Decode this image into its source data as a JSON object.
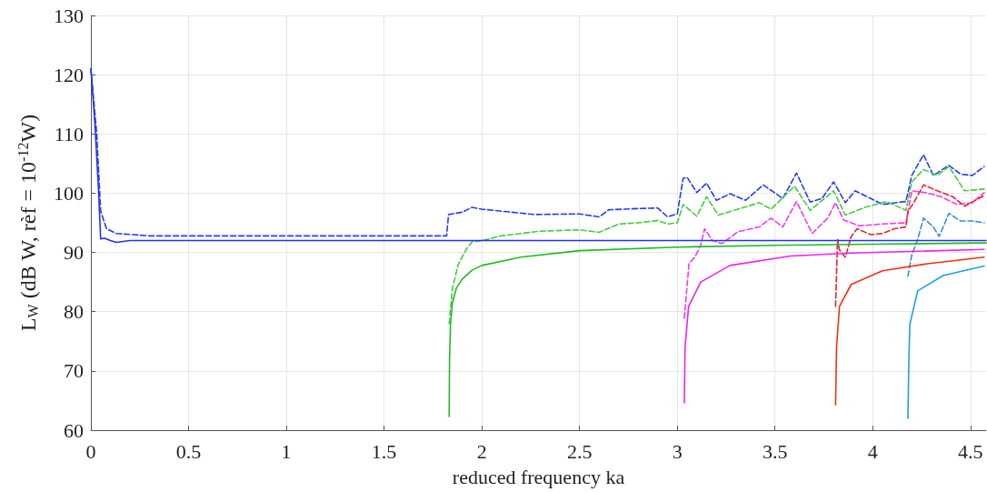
{
  "chart_data": {
    "type": "line",
    "xlabel": "reduced frequency ka",
    "ylabel": "L$_{W}$ (dB W, rèf = 10$^{-12}$W)",
    "xlim": [
      0,
      4.58
    ],
    "xticks": [
      0,
      0.5,
      1,
      1.5,
      2,
      2.5,
      3,
      3.5,
      4,
      4.5
    ],
    "ylim": [
      60,
      130
    ],
    "yticks": [
      60,
      70,
      80,
      90,
      100,
      110,
      120,
      130
    ],
    "grid": true,
    "marker": "none",
    "series": [
      {
        "color": "#2a3cf0",
        "line_style": "dashed",
        "x": [
          0,
          0.03,
          0.05,
          0.08,
          0.13,
          0.3,
          1,
          1.82,
          1.83,
          1.9,
          1.95,
          2.0,
          2.27,
          2.5,
          2.6,
          2.65,
          2.8,
          2.9,
          2.95,
          3.0,
          3.03,
          3.05,
          3.1,
          3.15,
          3.2,
          3.27,
          3.35,
          3.44,
          3.54,
          3.61,
          3.68,
          3.74,
          3.8,
          3.86,
          3.91,
          3.99,
          4.05,
          4.17,
          4.2,
          4.26,
          4.31,
          4.39,
          4.45,
          4.51,
          4.57
        ],
        "values": [
          121,
          110,
          97,
          94,
          93.2,
          92.8,
          92.8,
          92.8,
          96.4,
          96.8,
          97.6,
          97.3,
          96.4,
          96.5,
          96.0,
          97.2,
          97.4,
          97.5,
          96,
          96.5,
          102.5,
          102.7,
          100.1,
          101.7,
          98.8,
          99.9,
          98.8,
          101.4,
          99.1,
          103.4,
          98.5,
          99.1,
          101.9,
          98.4,
          100.4,
          99.1,
          98.1,
          98.6,
          103,
          106.5,
          103,
          104.7,
          103.2,
          103,
          104.5
        ]
      },
      {
        "color": "#44cc44",
        "line_style": "dashed",
        "x": [
          1.833,
          1.85,
          1.88,
          1.92,
          1.95,
          2.0,
          2.1,
          2.3,
          2.5,
          2.6,
          2.7,
          2.8,
          2.9,
          2.95,
          3.0,
          3.03,
          3.1,
          3.15,
          3.21,
          3.31,
          3.42,
          3.48,
          3.6,
          3.68,
          3.8,
          3.86,
          3.96,
          4.07,
          4.17,
          4.2,
          4.26,
          4.33,
          4.39,
          4.47,
          4.57
        ],
        "values": [
          78,
          84,
          88,
          90.5,
          91.8,
          92.0,
          92.8,
          93.6,
          93.8,
          93.4,
          94.8,
          95.0,
          95.4,
          94.8,
          95.0,
          98.1,
          96.1,
          99.4,
          96.3,
          97.3,
          98.4,
          97.3,
          101.2,
          97.1,
          100.4,
          96.3,
          97.6,
          98.6,
          97.1,
          101.9,
          104,
          103,
          104.5,
          100.4,
          100.7
        ]
      },
      {
        "color": "#f03cf0",
        "line_style": "dashed",
        "x": [
          3.036,
          3.06,
          3.09,
          3.12,
          3.14,
          3.18,
          3.23,
          3.31,
          3.42,
          3.48,
          3.54,
          3.61,
          3.69,
          3.77,
          3.81,
          3.85,
          3.93,
          4.05,
          4.17,
          4.2,
          4.27,
          4.35,
          4.43,
          4.51,
          4.57
        ],
        "values": [
          78.9,
          88.1,
          89.2,
          91.2,
          94,
          92,
          91.5,
          93.5,
          94.3,
          95.8,
          94.3,
          98.6,
          93.2,
          95.8,
          98.4,
          95.5,
          94.5,
          94.8,
          95.0,
          100.4,
          100.1,
          99.4,
          98.1,
          98.4,
          100.1
        ]
      },
      {
        "color": "#f02030",
        "line_style": "dashed",
        "x": [
          3.81,
          3.82,
          3.83,
          3.86,
          3.89,
          3.92,
          3.99,
          4.05,
          4.11,
          4.17,
          4.18,
          4.21,
          4.26,
          4.33,
          4.41,
          4.47,
          4.57
        ],
        "values": [
          80.9,
          92.2,
          90.4,
          89.2,
          92.7,
          94,
          93,
          93.2,
          94,
          94.3,
          96.9,
          98.4,
          101.4,
          100.4,
          99.4,
          97.8,
          99.6
        ]
      },
      {
        "color": "#3b8ed0",
        "line_style": "dashed",
        "x": [
          4.18,
          4.2,
          4.23,
          4.26,
          4.31,
          4.34,
          4.39,
          4.45,
          4.51,
          4.57
        ],
        "values": [
          86,
          89.6,
          92.2,
          95.8,
          94.3,
          92.7,
          96.6,
          95.3,
          95.3,
          95
        ]
      },
      {
        "color": "#2233ee",
        "line_style": "solid",
        "x": [
          0,
          0.02,
          0.04,
          0.05,
          0.07,
          0.1,
          0.13,
          0.2,
          0.3,
          0.6,
          1,
          2,
          3,
          4,
          4.58
        ],
        "values": [
          121,
          112,
          100,
          92.3,
          92.4,
          92.0,
          91.7,
          92.0,
          92.0,
          92.0,
          92.0,
          92.0,
          92.0,
          92.0,
          92.0
        ]
      },
      {
        "color": "#22bb22",
        "line_style": "solid",
        "x": [
          1.833,
          1.835,
          1.84,
          1.85,
          1.87,
          1.9,
          1.95,
          2.0,
          2.2,
          2.5,
          3,
          3.5,
          4,
          4.58
        ],
        "values": [
          62.3,
          72,
          78,
          81.5,
          84,
          85.5,
          87,
          87.8,
          89.2,
          90.3,
          90.9,
          91.2,
          91.4,
          91.6
        ]
      },
      {
        "color": "#ee22ee",
        "line_style": "solid",
        "x": [
          3.036,
          3.04,
          3.058,
          3.12,
          3.27,
          3.58,
          3.89,
          4.57
        ],
        "values": [
          64.6,
          74,
          80.9,
          85,
          87.8,
          89.4,
          89.9,
          90.5
        ]
      },
      {
        "color": "#ee3311",
        "line_style": "solid",
        "x": [
          3.81,
          3.815,
          3.83,
          3.89,
          4.05,
          4.28,
          4.57
        ],
        "values": [
          64.3,
          74,
          80.9,
          84.6,
          86.9,
          88.1,
          89.2
        ]
      },
      {
        "color": "#1aa0e0",
        "line_style": "solid",
        "x": [
          4.18,
          4.185,
          4.19,
          4.23,
          4.36,
          4.57
        ],
        "values": [
          62,
          72,
          77.9,
          83.5,
          86.1,
          87.7
        ]
      }
    ]
  }
}
